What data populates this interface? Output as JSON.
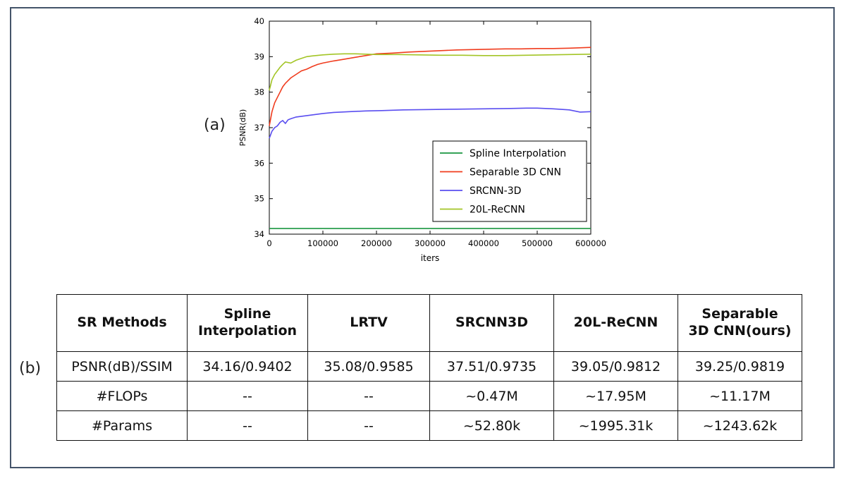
{
  "panel_labels": {
    "a": "(a)",
    "b": "(b)"
  },
  "colors": {
    "spline": "#1a9641",
    "separable": "#f03c1e",
    "srcnn": "#5a4ef0",
    "recnn": "#a3c526",
    "highlight": "#e8231b",
    "frame": "#44546a"
  },
  "chart_data": {
    "type": "line",
    "title": "",
    "xlabel": "iters",
    "ylabel": "PSNR(dB)",
    "xlim": [
      0,
      600000
    ],
    "ylim": [
      34,
      40
    ],
    "xticks": [
      0,
      100000,
      200000,
      300000,
      400000,
      500000,
      600000
    ],
    "xtick_labels": [
      "0",
      "100000",
      "200000",
      "300000",
      "400000",
      "500000",
      "600000"
    ],
    "yticks": [
      34,
      35,
      36,
      37,
      38,
      39,
      40
    ],
    "ytick_labels": [
      "34",
      "35",
      "36",
      "37",
      "38",
      "39",
      "40"
    ],
    "legend_position": "lower-right",
    "series": [
      {
        "name": "Spline Interpolation",
        "color": "#1a9641",
        "x": [
          0,
          600000
        ],
        "y": [
          34.16,
          34.16
        ]
      },
      {
        "name": "Separable 3D CNN",
        "color": "#f03c1e",
        "x": [
          0,
          5000,
          10000,
          15000,
          20000,
          25000,
          30000,
          40000,
          50000,
          60000,
          70000,
          80000,
          90000,
          100000,
          120000,
          140000,
          160000,
          180000,
          200000,
          230000,
          260000,
          290000,
          320000,
          350000,
          380000,
          410000,
          440000,
          470000,
          500000,
          530000,
          560000,
          600000
        ],
        "y": [
          37.05,
          37.45,
          37.7,
          37.85,
          38.0,
          38.15,
          38.25,
          38.4,
          38.5,
          38.6,
          38.65,
          38.72,
          38.78,
          38.82,
          38.88,
          38.93,
          38.98,
          39.03,
          39.08,
          39.1,
          39.13,
          39.15,
          39.17,
          39.19,
          39.2,
          39.21,
          39.22,
          39.22,
          39.23,
          39.23,
          39.24,
          39.26
        ]
      },
      {
        "name": "SRCNN-3D",
        "color": "#5a4ef0",
        "x": [
          0,
          5000,
          10000,
          15000,
          20000,
          25000,
          30000,
          35000,
          40000,
          50000,
          60000,
          70000,
          80000,
          100000,
          120000,
          150000,
          180000,
          210000,
          250000,
          300000,
          350000,
          400000,
          450000,
          480000,
          500000,
          530000,
          560000,
          580000,
          600000
        ],
        "y": [
          36.7,
          36.9,
          37.0,
          37.05,
          37.15,
          37.2,
          37.12,
          37.22,
          37.25,
          37.3,
          37.32,
          37.34,
          37.36,
          37.4,
          37.43,
          37.45,
          37.47,
          37.48,
          37.5,
          37.51,
          37.52,
          37.53,
          37.54,
          37.55,
          37.55,
          37.53,
          37.5,
          37.44,
          37.45
        ]
      },
      {
        "name": "20L-ReCNN",
        "color": "#a3c526",
        "x": [
          0,
          5000,
          10000,
          15000,
          20000,
          25000,
          30000,
          40000,
          50000,
          60000,
          70000,
          80000,
          100000,
          120000,
          140000,
          160000,
          180000,
          200000,
          240000,
          280000,
          320000,
          360000,
          400000,
          440000,
          480000,
          520000,
          560000,
          600000
        ],
        "y": [
          38.05,
          38.35,
          38.5,
          38.6,
          38.7,
          38.78,
          38.85,
          38.82,
          38.9,
          38.95,
          39.0,
          39.02,
          39.05,
          39.07,
          39.08,
          39.08,
          39.07,
          39.06,
          39.06,
          39.05,
          39.04,
          39.04,
          39.03,
          39.03,
          39.04,
          39.05,
          39.06,
          39.07
        ]
      }
    ]
  },
  "table": {
    "headers": [
      "SR Methods",
      "Spline\nInterpolation",
      "LRTV",
      "SRCNN3D",
      "20L-ReCNN",
      "Separable\n3D CNN(ours)"
    ],
    "rows": [
      [
        "PSNR(dB)/SSIM",
        "34.16/0.9402",
        "35.08/0.9585",
        "37.51/0.9735",
        "39.05/0.9812",
        "39.25/0.9819"
      ],
      [
        "#FLOPs",
        "--",
        "--",
        "~0.47M",
        "~17.95M",
        "~11.17M"
      ],
      [
        "#Params",
        "--",
        "--",
        "~52.80k",
        "~1995.31k",
        "~1243.62k"
      ]
    ]
  }
}
